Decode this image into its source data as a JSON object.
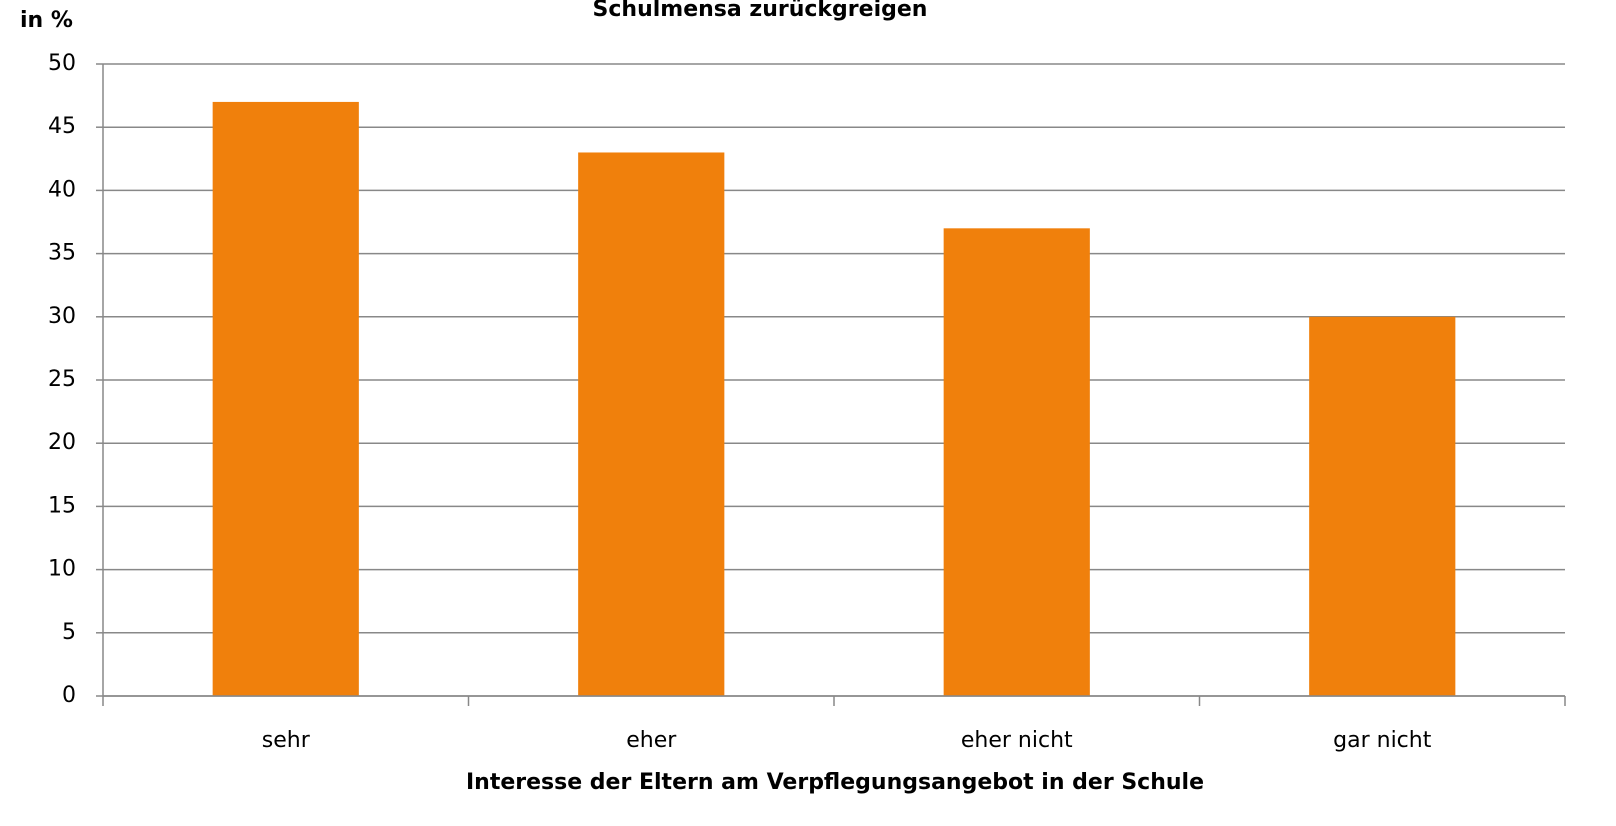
{
  "chart_data": {
    "type": "bar",
    "title": "Schulmensa zurückgreigen",
    "y_label": "in %",
    "x_label": "Interesse der Eltern am Verpflegungsangebot in der Schule",
    "categories": [
      "sehr",
      "eher",
      "eher nicht",
      "gar nicht"
    ],
    "values": [
      47,
      43,
      37,
      30
    ],
    "color": "#f0800c",
    "ylim": [
      0,
      50
    ],
    "yticks": [
      0,
      5,
      10,
      15,
      20,
      25,
      30,
      35,
      40,
      45,
      50
    ],
    "grid": true
  }
}
